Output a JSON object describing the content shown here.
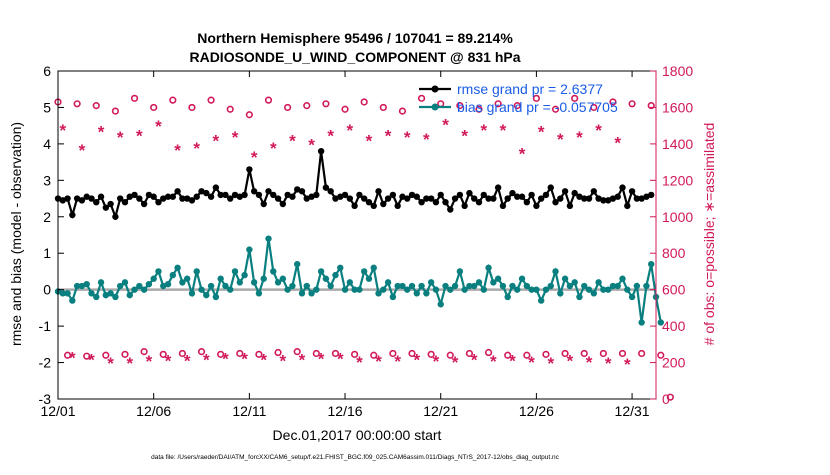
{
  "chart_data": {
    "type": "line",
    "title_line1": "Northern Hemisphere 95496 / 107041 = 89.214%",
    "title_line2": "RADIOSONDE_U_WIND_COMPONENT @ 831 hPa",
    "xlabel": "Dec.01,2017 00:00:00 start",
    "ylabel_left": "rmse and bias (model - observation)",
    "ylabel_right": "# of obs: o=possible; ∗=assimilated",
    "footer": "data file: /Users/raeder/DAI/ATM_forcXX/CAM6_setup/f.e21.FHIST_BGC.f09_025.CAM6assim.011/Diags_NTrS_2017-12/obs_diag_output.nc",
    "xlim": [
      0,
      31.25
    ],
    "ylim_left": [
      -3,
      6
    ],
    "ylim_right": [
      0,
      1800
    ],
    "x_ticks": [
      0,
      5,
      10,
      15,
      20,
      25,
      30
    ],
    "x_tick_labels": [
      "12/01",
      "12/06",
      "12/11",
      "12/16",
      "12/21",
      "12/26",
      "12/31"
    ],
    "y_left_ticks": [
      -3,
      -2,
      -1,
      0,
      1,
      2,
      3,
      4,
      5,
      6
    ],
    "y_left_tick_labels": [
      "-3",
      "-2",
      "-1",
      "0",
      "1",
      "2",
      "3",
      "4",
      "5",
      "6"
    ],
    "y_right_ticks": [
      0,
      200,
      400,
      600,
      800,
      1000,
      1200,
      1400,
      1600,
      1800
    ],
    "y_right_tick_labels": [
      "0",
      "200",
      "400",
      "600",
      "800",
      "1000",
      "1200",
      "1400",
      "1600",
      "1800"
    ],
    "colors": {
      "rmse": "#000000",
      "bias": "#0a7f7f",
      "obs": "#d1185a",
      "zero_line": "#aaaaaa",
      "legend_text": "#1a5ce6"
    },
    "legend": [
      {
        "label": "rmse grand pr = 2.6377",
        "series": "rmse"
      },
      {
        "label": "bias grand pr = -0.057705",
        "series": "bias"
      }
    ],
    "series": [
      {
        "name": "rmse",
        "axis": "left",
        "x_start": 0,
        "x_step": 0.25,
        "values": [
          2.5,
          2.45,
          2.5,
          2.05,
          2.5,
          2.45,
          2.55,
          2.5,
          2.4,
          2.55,
          2.25,
          2.35,
          2.0,
          2.5,
          2.4,
          2.55,
          2.6,
          2.5,
          2.35,
          2.6,
          2.55,
          2.4,
          2.5,
          2.55,
          2.55,
          2.7,
          2.5,
          2.5,
          2.45,
          2.55,
          2.7,
          2.65,
          2.55,
          2.8,
          2.6,
          2.6,
          2.5,
          2.6,
          2.55,
          2.6,
          3.3,
          2.7,
          2.6,
          2.35,
          2.7,
          2.6,
          2.5,
          2.35,
          2.6,
          2.55,
          2.75,
          2.7,
          2.5,
          2.55,
          2.6,
          3.8,
          2.8,
          2.7,
          2.5,
          2.55,
          2.6,
          2.5,
          2.3,
          2.6,
          2.5,
          2.4,
          2.3,
          2.7,
          2.35,
          2.5,
          2.6,
          2.3,
          2.55,
          2.5,
          2.6,
          2.55,
          2.4,
          2.5,
          2.5,
          2.4,
          2.6,
          2.4,
          2.2,
          2.5,
          2.6,
          2.3,
          2.65,
          2.5,
          2.4,
          2.6,
          2.5,
          2.5,
          2.8,
          2.3,
          2.5,
          2.65,
          2.55,
          2.55,
          2.4,
          2.6,
          2.3,
          2.5,
          2.6,
          2.8,
          2.4,
          2.5,
          2.7,
          2.3,
          2.65,
          2.55,
          2.5,
          2.5,
          2.7,
          2.5,
          2.45,
          2.45,
          2.5,
          2.55,
          2.8,
          2.3,
          2.7,
          2.5,
          2.5,
          2.55,
          2.6
        ]
      },
      {
        "name": "bias",
        "axis": "left",
        "x_start": 0,
        "x_step": 0.25,
        "values": [
          -0.05,
          -0.1,
          -0.1,
          -0.3,
          0.1,
          0.1,
          0.15,
          -0.1,
          -0.2,
          0.2,
          -0.15,
          -0.1,
          -0.2,
          0.1,
          0.2,
          -0.15,
          0.0,
          0.1,
          0.0,
          0.15,
          0.3,
          0.5,
          0.1,
          0.15,
          0.4,
          0.6,
          0.2,
          0.3,
          -0.1,
          0.5,
          0.0,
          -0.15,
          0.1,
          -0.2,
          0.3,
          0.1,
          0.0,
          0.5,
          0.2,
          0.4,
          1.1,
          0.2,
          -0.1,
          0.3,
          1.4,
          0.5,
          0.2,
          0.3,
          0.0,
          0.1,
          0.7,
          -0.1,
          0.1,
          -0.1,
          0.0,
          0.5,
          0.3,
          0.1,
          0.4,
          0.6,
          0.0,
          0.2,
          0.0,
          0.0,
          0.5,
          0.3,
          0.6,
          -0.1,
          0.0,
          0.2,
          -0.2,
          0.1,
          0.1,
          0.0,
          0.1,
          -0.1,
          0.1,
          -0.1,
          0.2,
          0.0,
          -0.4,
          0.1,
          0.0,
          0.1,
          0.5,
          0.0,
          0.1,
          0.1,
          0.2,
          0.0,
          0.6,
          0.2,
          0.3,
          0.1,
          -0.2,
          0.1,
          0.0,
          0.3,
          0.1,
          0.0,
          0.0,
          -0.3,
          0.0,
          0.1,
          0.5,
          -0.1,
          0.3,
          0.1,
          0.2,
          -0.2,
          0.1,
          0.0,
          -0.1,
          0.2,
          0.0,
          0.0,
          0.1,
          0.1,
          0.3,
          0.0,
          -0.2,
          0.1,
          -0.9,
          0.1,
          0.7,
          -0.2,
          -0.9
        ]
      },
      {
        "name": "obs_possible",
        "axis": "right",
        "marker": "o",
        "x_start": 0,
        "x_step": 0.5,
        "values": [
          1630,
          240,
          1620,
          235,
          1610,
          240,
          1580,
          245,
          1650,
          260,
          1600,
          245,
          1640,
          250,
          1600,
          260,
          1640,
          245,
          1590,
          250,
          1560,
          245,
          1640,
          255,
          1600,
          260,
          1610,
          250,
          1620,
          250,
          1590,
          245,
          1630,
          240,
          1600,
          250,
          1580,
          250,
          1650,
          245,
          1620,
          240,
          1610,
          250,
          1590,
          255,
          1620,
          240,
          1610,
          240,
          1650,
          245,
          1590,
          250,
          1650,
          250,
          1600,
          250,
          1630,
          250,
          1620,
          250,
          1610,
          240,
          10
        ]
      },
      {
        "name": "obs_assimilated",
        "axis": "right",
        "marker": "*",
        "x_start": 0.25,
        "x_step": 0.5,
        "values": [
          1480,
          230,
          1370,
          220,
          1470,
          200,
          1440,
          200,
          1450,
          210,
          1500,
          215,
          1370,
          215,
          1380,
          220,
          1420,
          225,
          1440,
          225,
          1330,
          220,
          1380,
          215,
          1420,
          220,
          1400,
          225,
          1450,
          225,
          1480,
          205,
          1420,
          210,
          1450,
          210,
          1440,
          220,
          1430,
          210,
          1510,
          205,
          1450,
          220,
          1480,
          210,
          1480,
          215,
          1350,
          205,
          1470,
          200,
          1430,
          215,
          1440,
          205,
          1480,
          200,
          1410,
          195
        ]
      }
    ]
  }
}
